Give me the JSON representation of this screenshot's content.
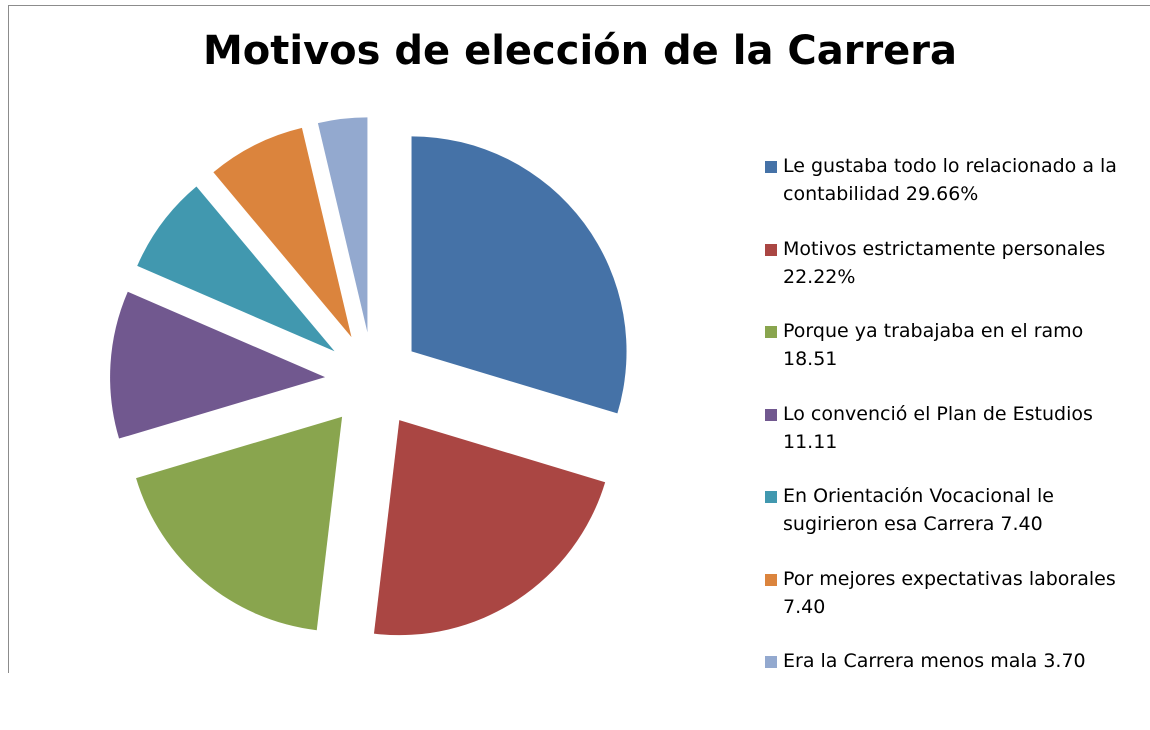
{
  "chart_data": {
    "type": "pie",
    "title": "Motivos de elección de la Carrera",
    "categories": [
      "Le gustaba todo lo relacionado a la contabilidad 29.66%",
      "Motivos estrictamente personales 22.22%",
      "Porque ya trabajaba en el ramo 18.51",
      "Lo convenció el Plan de Estudios 11.11",
      "En Orientación Vocacional le sugirieron esa Carrera 7.40",
      "Por mejores expectativas laborales 7.40",
      "Era la Carrera menos mala 3.70"
    ],
    "values": [
      29.66,
      22.22,
      18.51,
      11.11,
      7.4,
      7.4,
      3.7
    ],
    "colors": [
      "#4572a7",
      "#aa4643",
      "#89a54e",
      "#71588f",
      "#4198af",
      "#db843d",
      "#93a9cf"
    ],
    "legend": "right"
  }
}
